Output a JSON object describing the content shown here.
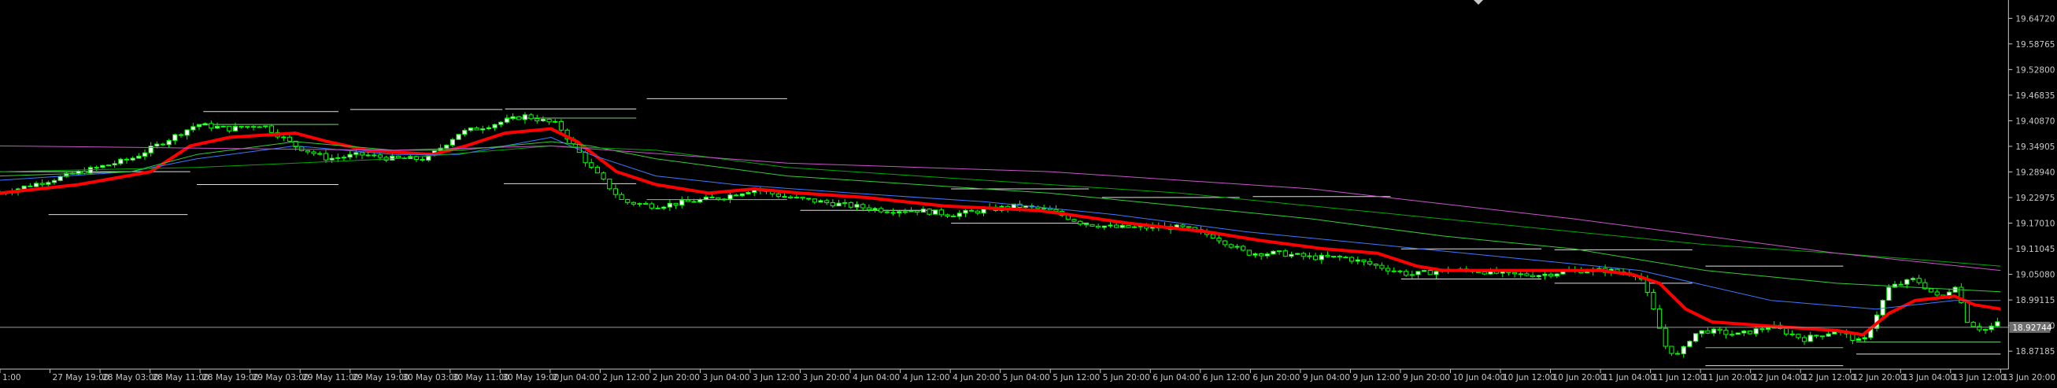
{
  "chart_data": {
    "type": "line",
    "title": "",
    "xlabel": "",
    "ylabel": "",
    "ylim": [
      18.83,
      19.69
    ],
    "y_ticks": [
      "19.64720",
      "19.58765",
      "19.52800",
      "19.46835",
      "19.40870",
      "19.34905",
      "19.28940",
      "19.22975",
      "19.17010",
      "19.11045",
      "19.05080",
      "18.99115",
      "18.93150",
      "18.87185"
    ],
    "current_price": "18.92744",
    "current_price_value": 18.9274,
    "x_ticks": [
      "1:00",
      "27 May 19:00",
      "28 May 03:00",
      "28 May 11:00",
      "28 May 19:00",
      "29 May 03:00",
      "29 May 11:00",
      "29 May 19:00",
      "30 May 03:00",
      "30 May 11:00",
      "30 May 19:00",
      "2 Jun 04:00",
      "2 Jun 12:00",
      "2 Jun 20:00",
      "3 Jun 04:00",
      "3 Jun 12:00",
      "3 Jun 20:00",
      "4 Jun 04:00",
      "4 Jun 12:00",
      "4 Jun 20:00",
      "5 Jun 04:00",
      "5 Jun 12:00",
      "5 Jun 20:00",
      "6 Jun 04:00",
      "6 Jun 12:00",
      "6 Jun 20:00",
      "9 Jun 04:00",
      "9 Jun 12:00",
      "9 Jun 20:00",
      "10 Jun 04:00",
      "10 Jun 12:00",
      "10 Jun 20:00",
      "11 Jun 04:00",
      "11 Jun 12:00",
      "11 Jun 20:00",
      "12 Jun 04:00",
      "12 Jun 12:00",
      "12 Jun 20:00",
      "13 Jun 04:00",
      "13 Jun 12:00",
      "13 Jun 20:00"
    ],
    "price_path": [
      [
        0,
        19.24
      ],
      [
        25,
        19.26
      ],
      [
        50,
        19.28
      ],
      [
        75,
        19.3
      ],
      [
        100,
        19.32
      ],
      [
        125,
        19.36
      ],
      [
        150,
        19.4
      ],
      [
        175,
        19.39
      ],
      [
        200,
        19.4
      ],
      [
        225,
        19.35
      ],
      [
        250,
        19.32
      ],
      [
        275,
        19.33
      ],
      [
        300,
        19.32
      ],
      [
        325,
        19.32
      ],
      [
        350,
        19.38
      ],
      [
        375,
        19.4
      ],
      [
        400,
        19.42
      ],
      [
        425,
        19.4
      ],
      [
        450,
        19.3
      ],
      [
        475,
        19.22
      ],
      [
        500,
        19.21
      ],
      [
        525,
        19.22
      ],
      [
        550,
        19.23
      ],
      [
        575,
        19.25
      ],
      [
        600,
        19.23
      ],
      [
        625,
        19.22
      ],
      [
        650,
        19.21
      ],
      [
        675,
        19.2
      ],
      [
        700,
        19.2
      ],
      [
        725,
        19.19
      ],
      [
        750,
        19.2
      ],
      [
        775,
        19.21
      ],
      [
        800,
        19.2
      ],
      [
        825,
        19.17
      ],
      [
        850,
        19.16
      ],
      [
        875,
        19.16
      ],
      [
        900,
        19.16
      ],
      [
        925,
        19.14
      ],
      [
        950,
        19.1
      ],
      [
        975,
        19.1
      ],
      [
        1000,
        19.09
      ],
      [
        1025,
        19.09
      ],
      [
        1050,
        19.07
      ],
      [
        1075,
        19.05
      ],
      [
        1100,
        19.06
      ],
      [
        1125,
        19.06
      ],
      [
        1150,
        19.05
      ],
      [
        1175,
        19.05
      ],
      [
        1200,
        19.06
      ],
      [
        1225,
        19.06
      ],
      [
        1250,
        19.05
      ],
      [
        1260,
        18.97
      ],
      [
        1270,
        18.88
      ],
      [
        1280,
        18.86
      ],
      [
        1290,
        18.91
      ],
      [
        1300,
        18.92
      ],
      [
        1325,
        18.91
      ],
      [
        1350,
        18.93
      ],
      [
        1375,
        18.9
      ],
      [
        1400,
        18.92
      ],
      [
        1420,
        18.89
      ],
      [
        1440,
        19.02
      ],
      [
        1460,
        19.04
      ],
      [
        1480,
        18.99
      ],
      [
        1490,
        19.03
      ],
      [
        1500,
        18.94
      ],
      [
        1512,
        18.92
      ],
      [
        1525,
        18.94
      ]
    ],
    "series": [
      {
        "color": "#ff0000",
        "width": 4,
        "points": [
          [
            0,
            19.24
          ],
          [
            60,
            19.26
          ],
          [
            115,
            19.29
          ],
          [
            145,
            19.35
          ],
          [
            175,
            19.37
          ],
          [
            225,
            19.38
          ],
          [
            250,
            19.36
          ],
          [
            280,
            19.34
          ],
          [
            330,
            19.33
          ],
          [
            355,
            19.35
          ],
          [
            385,
            19.38
          ],
          [
            420,
            19.39
          ],
          [
            440,
            19.36
          ],
          [
            470,
            19.29
          ],
          [
            500,
            19.26
          ],
          [
            540,
            19.24
          ],
          [
            575,
            19.25
          ],
          [
            610,
            19.24
          ],
          [
            660,
            19.23
          ],
          [
            720,
            19.21
          ],
          [
            790,
            19.2
          ],
          [
            815,
            19.19
          ],
          [
            860,
            19.17
          ],
          [
            920,
            19.15
          ],
          [
            960,
            19.13
          ],
          [
            1010,
            19.11
          ],
          [
            1050,
            19.1
          ],
          [
            1080,
            19.07
          ],
          [
            1100,
            19.06
          ],
          [
            1150,
            19.06
          ],
          [
            1220,
            19.06
          ],
          [
            1245,
            19.05
          ],
          [
            1265,
            19.03
          ],
          [
            1285,
            18.97
          ],
          [
            1305,
            18.94
          ],
          [
            1350,
            18.93
          ],
          [
            1400,
            18.92
          ],
          [
            1420,
            18.91
          ],
          [
            1440,
            18.96
          ],
          [
            1460,
            18.99
          ],
          [
            1490,
            19.0
          ],
          [
            1505,
            18.98
          ],
          [
            1525,
            18.97
          ]
        ]
      },
      {
        "color": "#3c78ff",
        "width": 1,
        "points": [
          [
            0,
            19.27
          ],
          [
            100,
            19.29
          ],
          [
            150,
            19.32
          ],
          [
            225,
            19.35
          ],
          [
            300,
            19.33
          ],
          [
            350,
            19.33
          ],
          [
            420,
            19.37
          ],
          [
            450,
            19.33
          ],
          [
            500,
            19.28
          ],
          [
            560,
            19.26
          ],
          [
            650,
            19.24
          ],
          [
            750,
            19.22
          ],
          [
            850,
            19.19
          ],
          [
            950,
            19.15
          ],
          [
            1050,
            19.12
          ],
          [
            1150,
            19.09
          ],
          [
            1250,
            19.06
          ],
          [
            1350,
            18.99
          ],
          [
            1430,
            18.97
          ],
          [
            1490,
            18.99
          ],
          [
            1525,
            18.99
          ]
        ]
      },
      {
        "color": "#32cd32",
        "width": 1,
        "points": [
          [
            0,
            19.28
          ],
          [
            100,
            19.29
          ],
          [
            150,
            19.33
          ],
          [
            225,
            19.36
          ],
          [
            300,
            19.34
          ],
          [
            350,
            19.34
          ],
          [
            420,
            19.36
          ],
          [
            450,
            19.35
          ],
          [
            500,
            19.32
          ],
          [
            600,
            19.28
          ],
          [
            700,
            19.26
          ],
          [
            800,
            19.24
          ],
          [
            900,
            19.21
          ],
          [
            1000,
            19.18
          ],
          [
            1100,
            19.14
          ],
          [
            1200,
            19.11
          ],
          [
            1300,
            19.06
          ],
          [
            1400,
            19.03
          ],
          [
            1525,
            19.01
          ]
        ]
      },
      {
        "color": "#00a800",
        "width": 1,
        "points": [
          [
            0,
            19.29
          ],
          [
            150,
            19.3
          ],
          [
            300,
            19.32
          ],
          [
            420,
            19.35
          ],
          [
            500,
            19.34
          ],
          [
            600,
            19.3
          ],
          [
            700,
            19.28
          ],
          [
            800,
            19.26
          ],
          [
            900,
            19.24
          ],
          [
            1000,
            19.21
          ],
          [
            1100,
            19.18
          ],
          [
            1200,
            19.15
          ],
          [
            1300,
            19.12
          ],
          [
            1400,
            19.1
          ],
          [
            1525,
            19.07
          ]
        ]
      },
      {
        "color": "#c856c8",
        "width": 1,
        "points": [
          [
            0,
            19.35
          ],
          [
            300,
            19.34
          ],
          [
            420,
            19.35
          ],
          [
            600,
            19.31
          ],
          [
            800,
            19.29
          ],
          [
            1000,
            19.25
          ],
          [
            1200,
            19.18
          ],
          [
            1400,
            19.1
          ],
          [
            1525,
            19.06
          ]
        ]
      }
    ],
    "levels": [
      {
        "color": "#e0e0e0",
        "y": 19.46,
        "x1": 493,
        "x2": 600
      },
      {
        "color": "#e0e0e0",
        "y": 19.435,
        "x1": 267,
        "x2": 383
      },
      {
        "color": "#e0e0e0",
        "y": 19.43,
        "x1": 155,
        "x2": 258
      },
      {
        "color": "#e0e0e0",
        "y": 19.436,
        "x1": 385,
        "x2": 485
      },
      {
        "color": "#7fc87f",
        "y": 19.415,
        "x1": 385,
        "x2": 485
      },
      {
        "color": "#7fc87f",
        "y": 19.4,
        "x1": 150,
        "x2": 258
      },
      {
        "color": "#e0e0e0",
        "y": 19.29,
        "x1": 0,
        "x2": 145
      },
      {
        "color": "#e0e0e0",
        "y": 19.26,
        "x1": 150,
        "x2": 258
      },
      {
        "color": "#e0e0e0",
        "y": 19.19,
        "x1": 37,
        "x2": 143
      },
      {
        "color": "#e0e0e0",
        "y": 19.262,
        "x1": 384,
        "x2": 485
      },
      {
        "color": "#7fc87f",
        "y": 19.225,
        "x1": 493,
        "x2": 600
      },
      {
        "color": "#e0e0e0",
        "y": 19.2,
        "x1": 610,
        "x2": 715
      },
      {
        "color": "#e0e0e0",
        "y": 19.25,
        "x1": 725,
        "x2": 830
      },
      {
        "color": "#e0e0e0",
        "y": 19.23,
        "x1": 840,
        "x2": 945
      },
      {
        "color": "#e0e0e0",
        "y": 19.232,
        "x1": 955,
        "x2": 1060
      },
      {
        "color": "#e0e0e0",
        "y": 19.17,
        "x1": 725,
        "x2": 830
      },
      {
        "color": "#e0e0e0",
        "y": 19.11,
        "x1": 1068,
        "x2": 1175
      },
      {
        "color": "#e0e0e0",
        "y": 19.108,
        "x1": 1185,
        "x2": 1290
      },
      {
        "color": "#e0e0e0",
        "y": 19.07,
        "x1": 1300,
        "x2": 1405
      },
      {
        "color": "#e0e0e0",
        "y": 19.04,
        "x1": 1068,
        "x2": 1175
      },
      {
        "color": "#e0e0e0",
        "y": 19.03,
        "x1": 1185,
        "x2": 1290
      },
      {
        "color": "#e0e0e0",
        "y": 18.865,
        "x1": 1415,
        "x2": 1525
      },
      {
        "color": "#e0e0e0",
        "y": 18.838,
        "x1": 1300,
        "x2": 1405
      },
      {
        "color": "#7fc87f",
        "y": 18.893,
        "x1": 1415,
        "x2": 1525
      },
      {
        "color": "#7fc87f",
        "y": 18.88,
        "x1": 1300,
        "x2": 1405
      }
    ]
  },
  "colors": {
    "background": "#000000",
    "axis": "#c8c8c8",
    "bull_candle": "#ffffff",
    "bear_candle": "#000000",
    "candle_outline": "#00ff00",
    "price_label_bg": "#6e6e6e"
  }
}
